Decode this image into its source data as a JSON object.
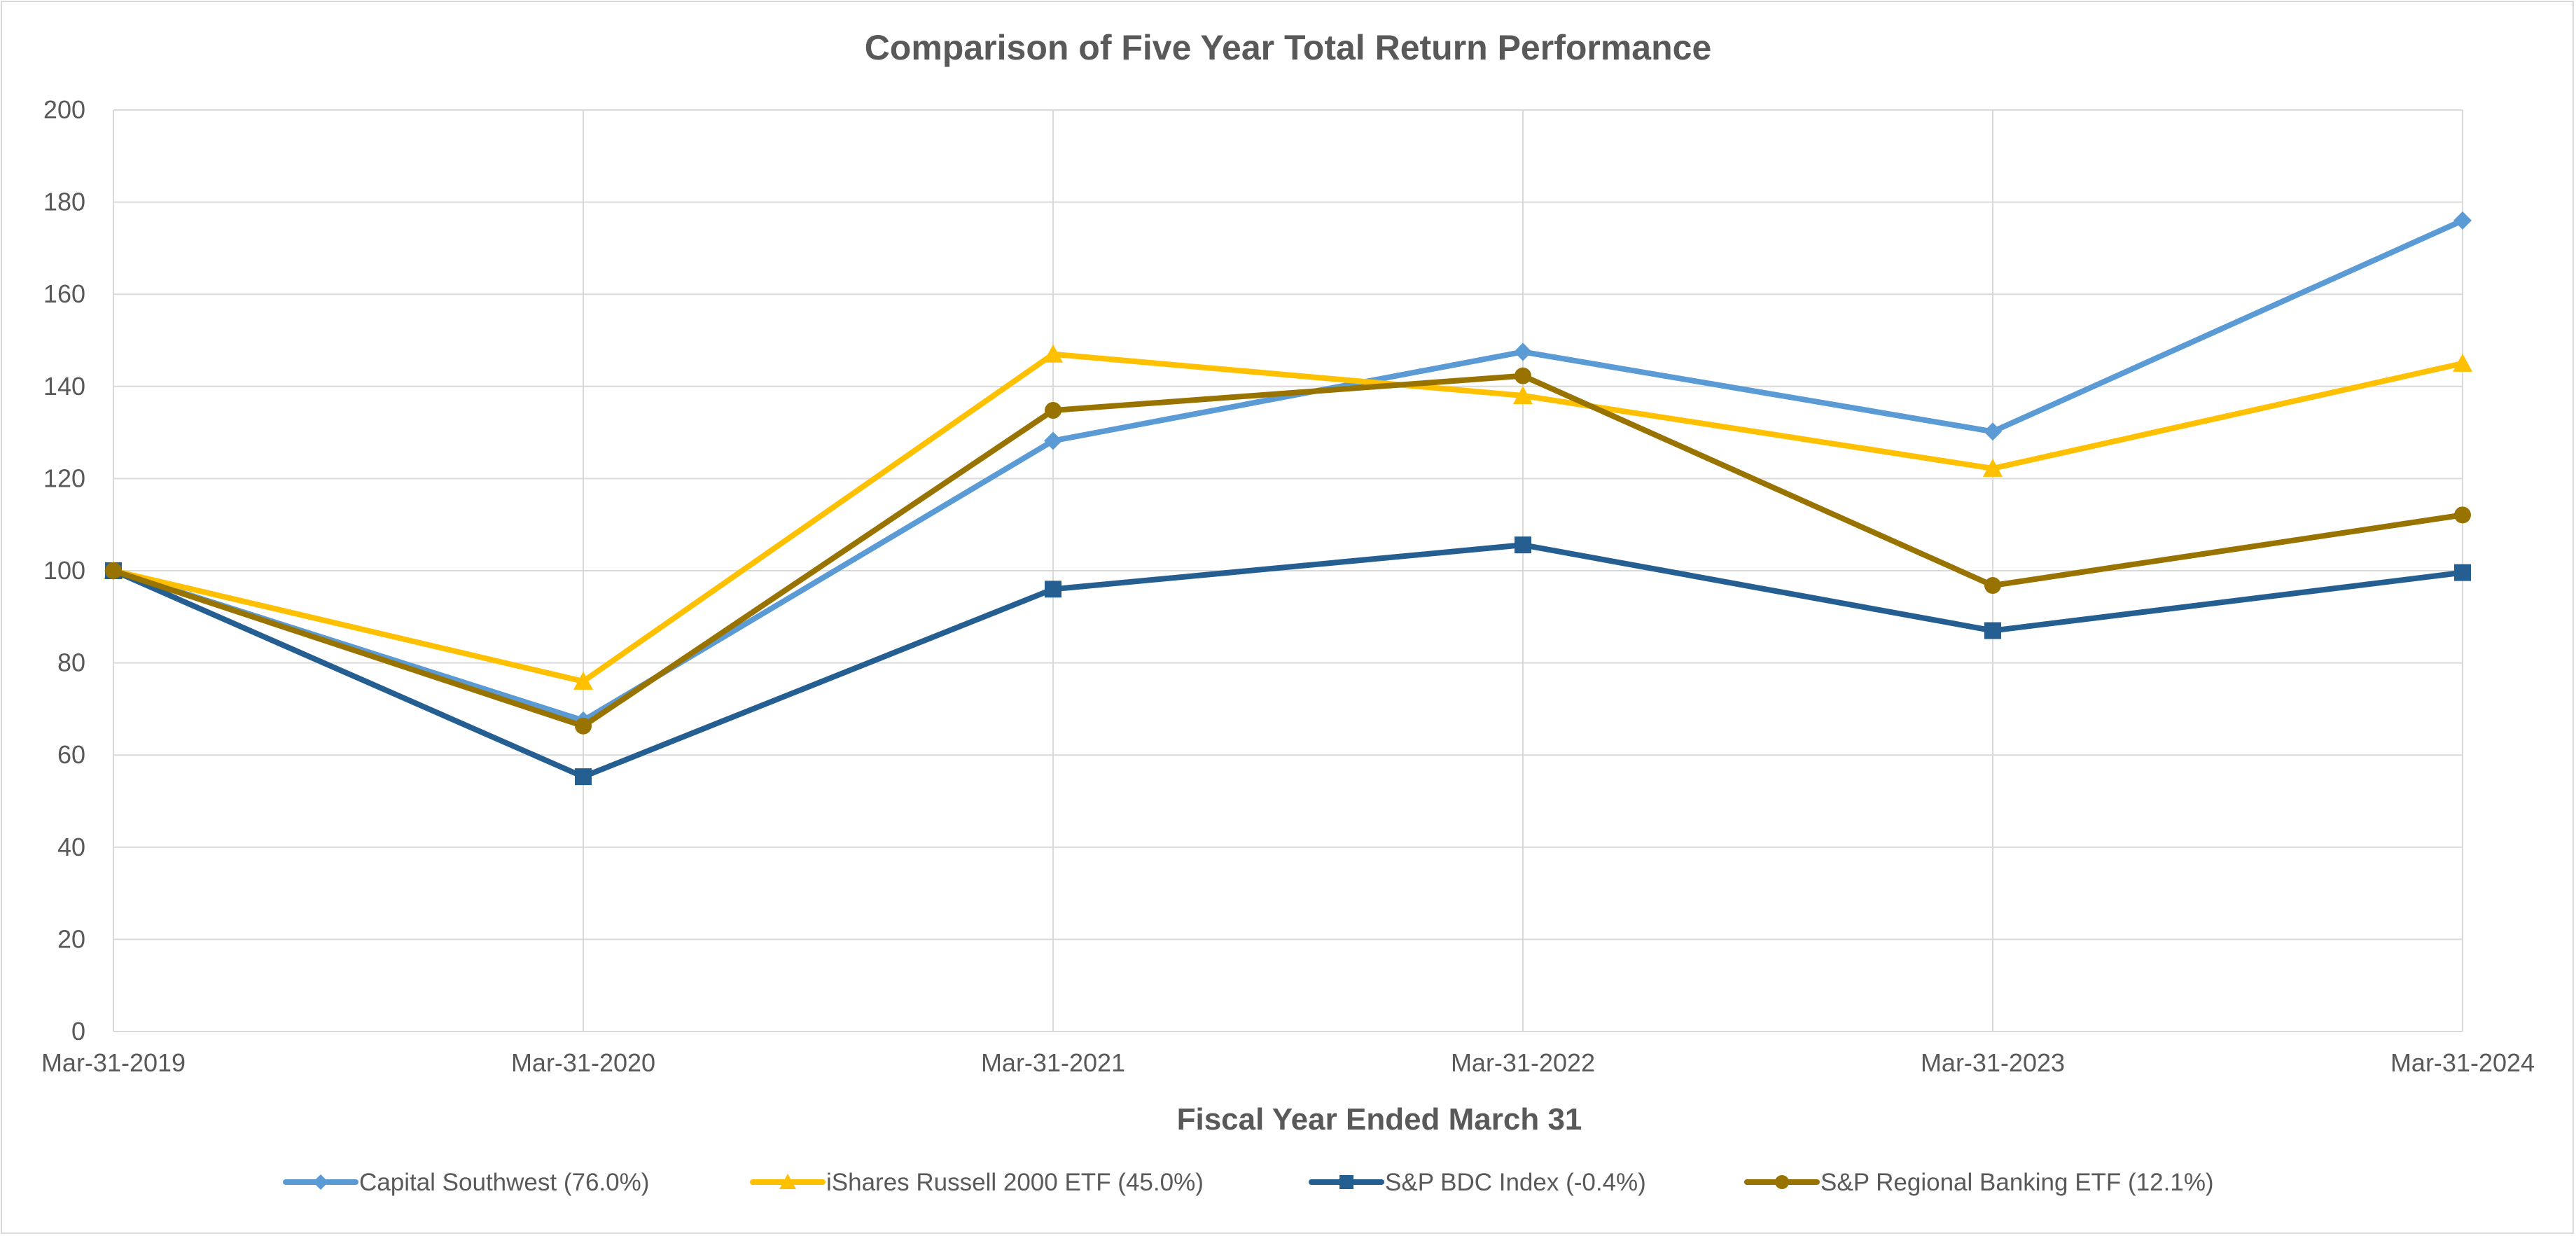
{
  "chart_data": {
    "type": "line",
    "title": "Comparison of Five Year Total Return Performance",
    "xlabel": "Fiscal Year Ended March 31",
    "ylabel": "",
    "categories": [
      "Mar-31-2019",
      "Mar-31-2020",
      "Mar-31-2021",
      "Mar-31-2022",
      "Mar-31-2023",
      "Mar-31-2024"
    ],
    "ylim": [
      0,
      200
    ],
    "yticks": [
      0,
      20,
      40,
      60,
      80,
      100,
      120,
      140,
      160,
      180,
      200
    ],
    "grid": true,
    "legend_position": "bottom",
    "series": [
      {
        "name": "Capital Southwest (76.0%)",
        "color": "#5b9bd5",
        "marker": "diamond",
        "values": [
          100,
          67.5,
          128.2,
          147.5,
          130.2,
          176.0
        ]
      },
      {
        "name": "iShares Russell 2000 ETF (45.0%)",
        "color": "#ffc000",
        "marker": "triangle",
        "values": [
          100,
          76.0,
          147.0,
          138.0,
          122.2,
          145.0
        ]
      },
      {
        "name": "S&P BDC Index (-0.4%)",
        "color": "#255e91",
        "marker": "square",
        "values": [
          100,
          55.3,
          96.0,
          105.6,
          87.0,
          99.6
        ]
      },
      {
        "name": "S&P Regional Banking ETF (12.1%)",
        "color": "#997300",
        "marker": "circle",
        "values": [
          100,
          66.3,
          134.8,
          142.3,
          96.8,
          112.1
        ]
      }
    ]
  }
}
